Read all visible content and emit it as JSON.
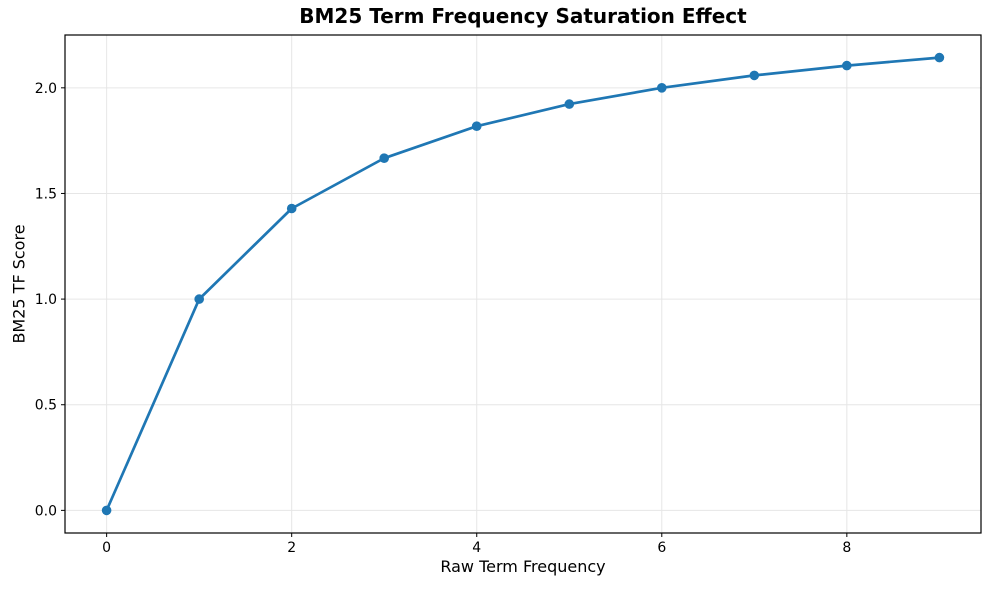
{
  "chart_data": {
    "type": "line",
    "title": "BM25 Term Frequency Saturation Effect",
    "xlabel": "Raw Term Frequency",
    "ylabel": "BM25 TF Score",
    "x": [
      0,
      1,
      2,
      3,
      4,
      5,
      6,
      7,
      8,
      9
    ],
    "y": [
      0.0,
      1.0,
      1.4286,
      1.6667,
      1.8182,
      1.9231,
      2.0,
      2.0588,
      2.1053,
      2.1429
    ],
    "xticks": [
      0,
      2,
      4,
      6,
      8
    ],
    "xtick_labels": [
      "0",
      "2",
      "4",
      "6",
      "8"
    ],
    "yticks": [
      0.0,
      0.5,
      1.0,
      1.5,
      2.0
    ],
    "ytick_labels": [
      "0.0",
      "0.5",
      "1.0",
      "1.5",
      "2.0"
    ],
    "xlim": [
      -0.45,
      9.45
    ],
    "ylim": [
      -0.1071,
      2.25
    ],
    "grid": true,
    "legend_position": "none",
    "line_color": "#1f77b4",
    "marker": "circle",
    "grid_color": "#e6e6e6",
    "axis_color": "#000000",
    "background_color": "#ffffff"
  }
}
